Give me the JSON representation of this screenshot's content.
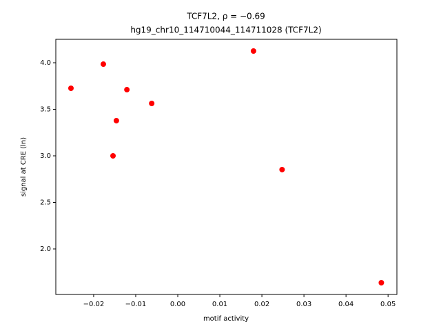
{
  "chart_data": {
    "type": "scatter",
    "title": "TCF7L2, ρ = −0.69",
    "subtitle": "hg19_chr10_114710044_114711028 (TCF7L2)",
    "x_label": "motif activity",
    "y_label": "signal at CRE (ln)",
    "color": "#ff0000",
    "x": [
      -0.0254,
      -0.0177,
      -0.0154,
      -0.0146,
      -0.0121,
      -0.0062,
      0.018,
      0.0248,
      0.0484
    ],
    "values": [
      3.726,
      3.985,
      3.0,
      3.378,
      3.711,
      3.563,
      4.126,
      2.852,
      1.637
    ],
    "xlim": [
      -0.029,
      0.0521
    ],
    "ylim": [
      1.511,
      4.252
    ],
    "xticks": [
      {
        "value": -0.02,
        "label": "−0.02"
      },
      {
        "value": -0.01,
        "label": "−0.01"
      },
      {
        "value": 0,
        "label": "0.00"
      },
      0.01,
      0.02,
      0.03,
      0.04,
      0.05
    ],
    "yticks": [
      {
        "value": 2,
        "label": "2.0"
      },
      2.5,
      {
        "value": 3,
        "label": "3.0"
      },
      3.5,
      {
        "value": 4,
        "label": "4.0"
      }
    ]
  }
}
